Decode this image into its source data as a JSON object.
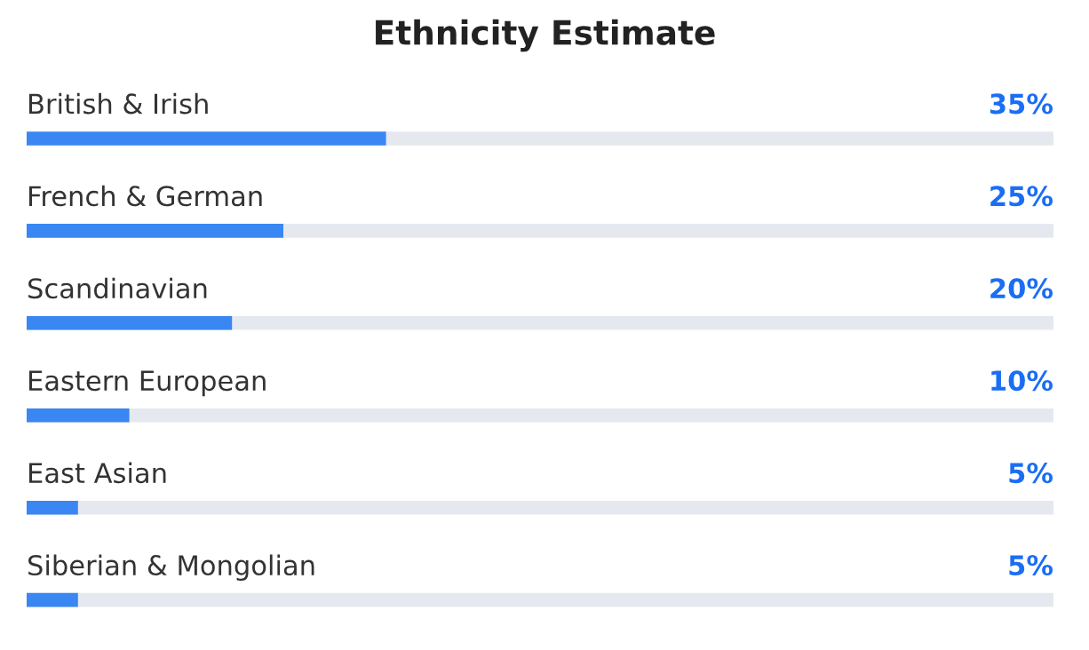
{
  "chart_data": {
    "type": "bar",
    "orientation": "horizontal",
    "title": "Ethnicity Estimate",
    "categories": [
      "British & Irish",
      "French & German",
      "Scandinavian",
      "Eastern European",
      "East Asian",
      "Siberian & Mongolian"
    ],
    "values": [
      35,
      25,
      20,
      10,
      5,
      5
    ],
    "value_labels": [
      "35%",
      "25%",
      "20%",
      "10%",
      "5%",
      "5%"
    ],
    "color": "#3a86f2",
    "xlim": [
      0,
      100
    ]
  }
}
